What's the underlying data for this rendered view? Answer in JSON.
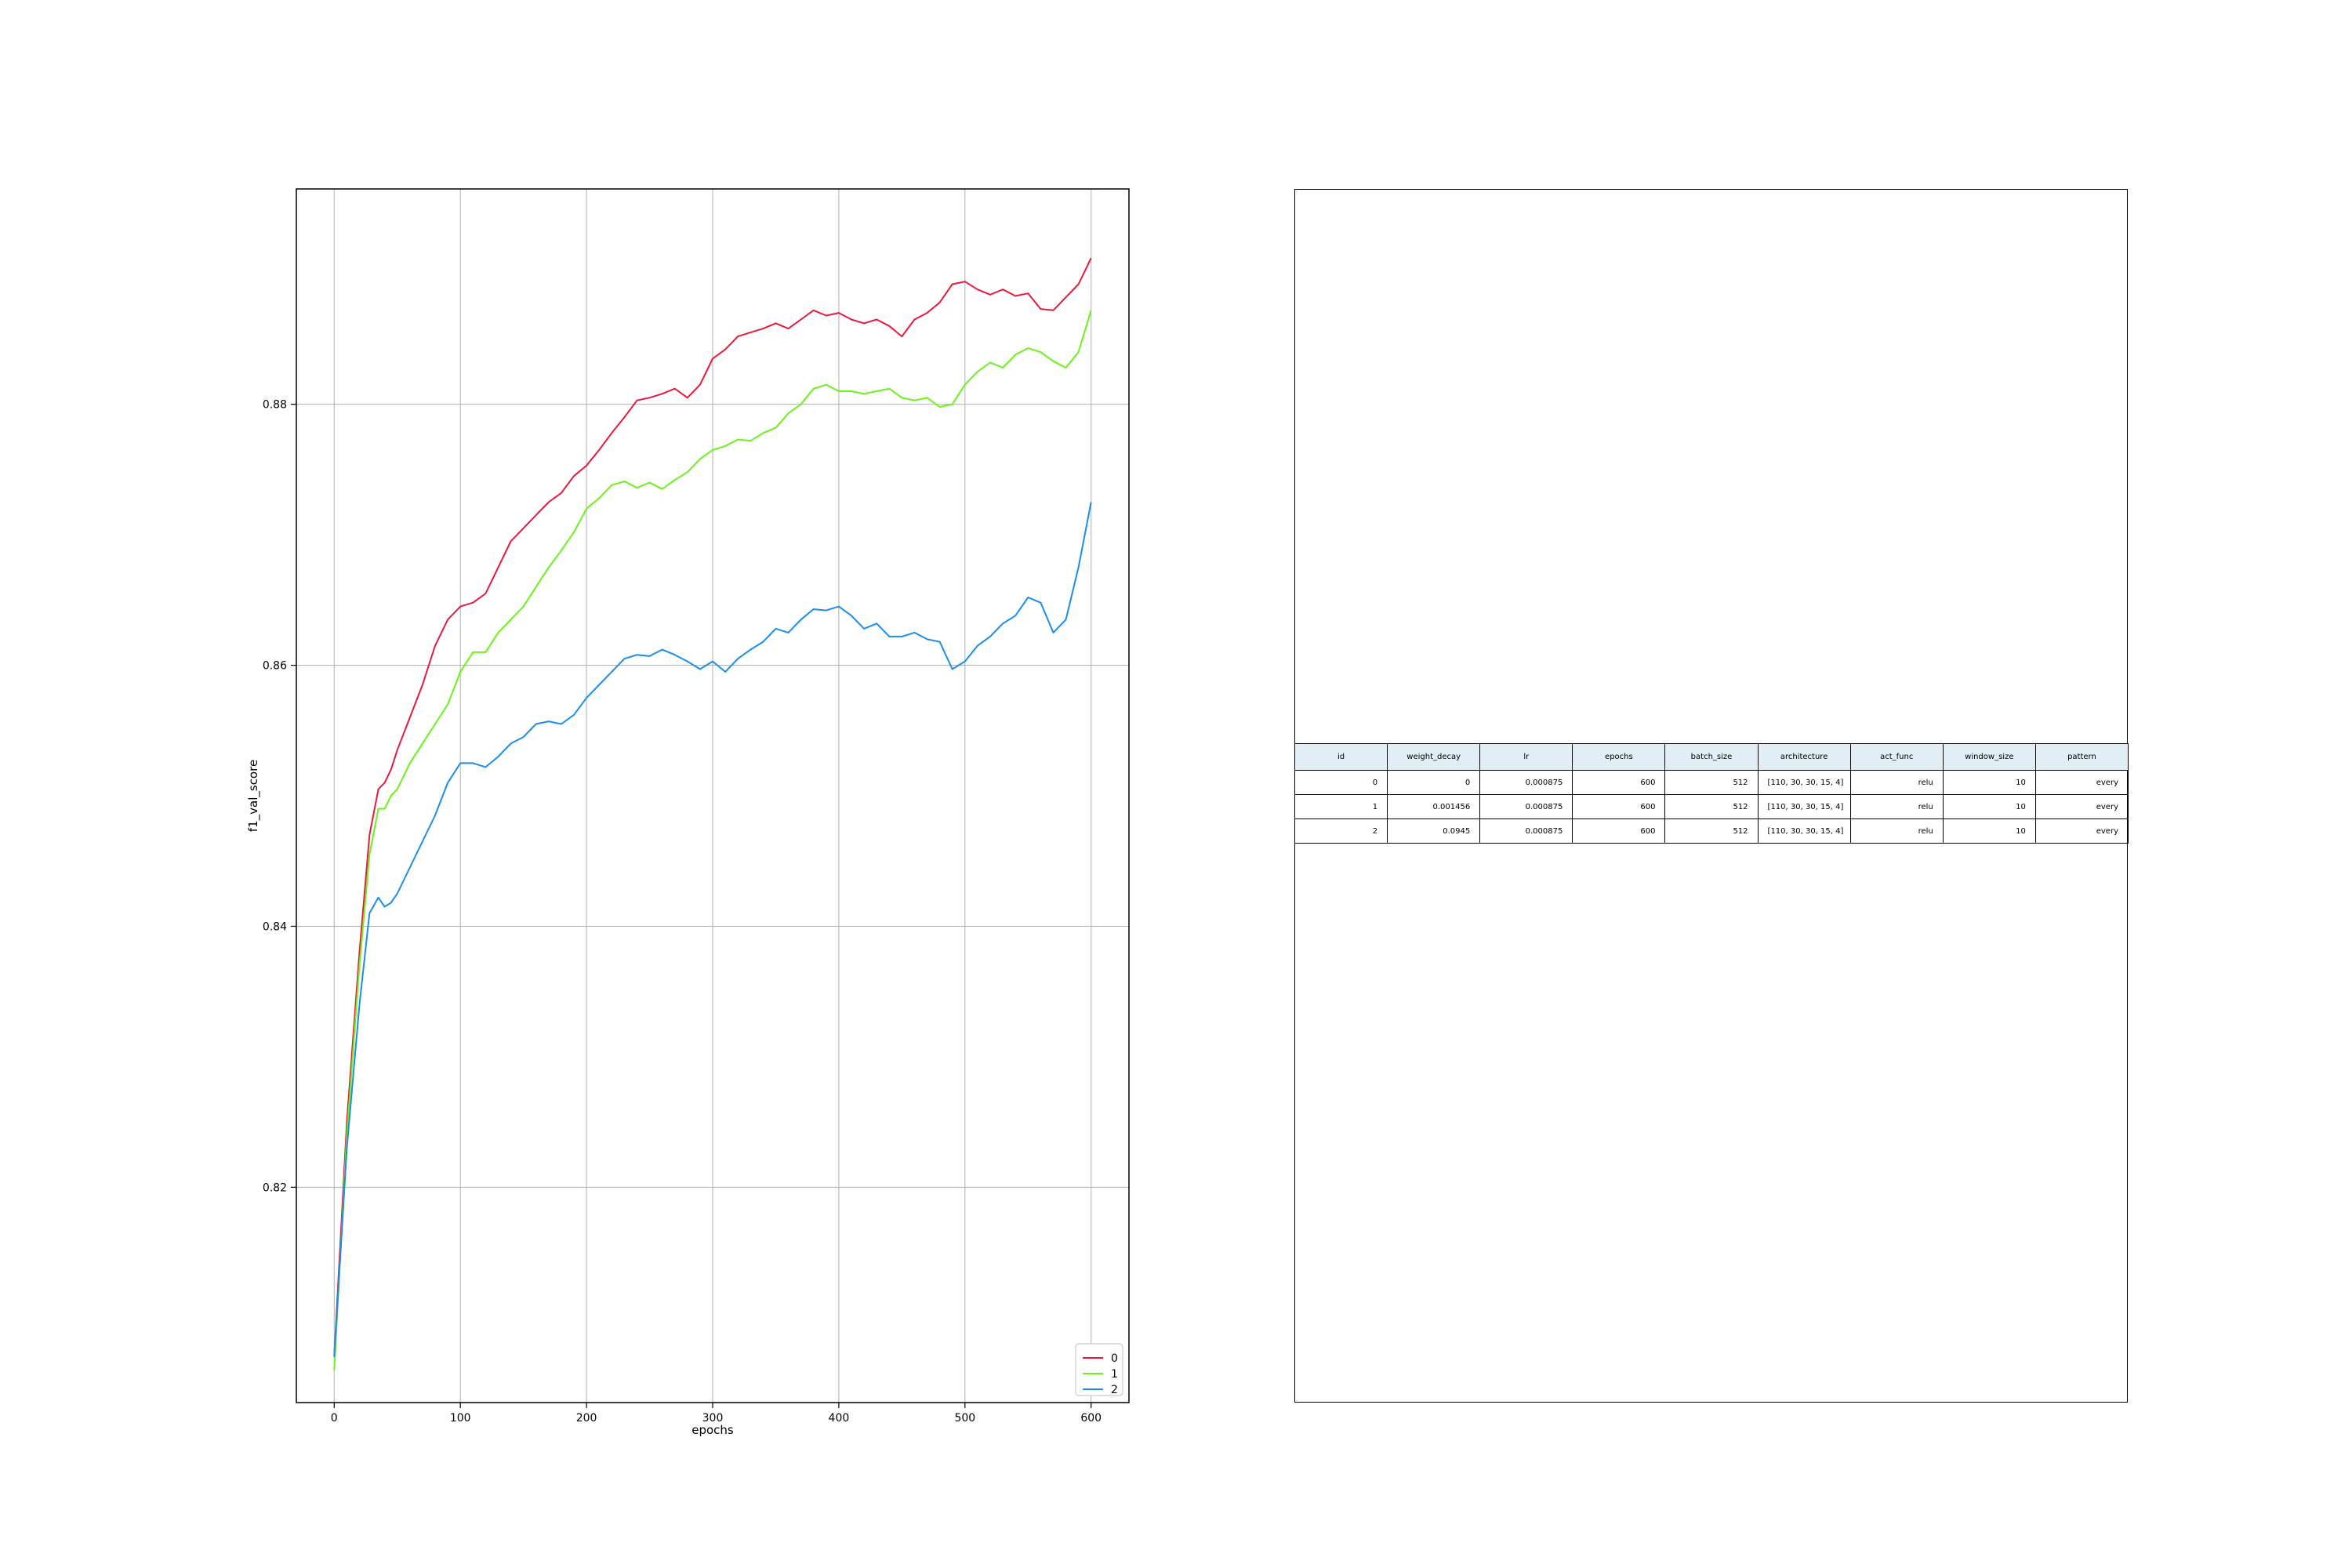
{
  "chart_data": {
    "type": "line",
    "xlabel": "epochs",
    "ylabel": "f1_val_score",
    "xlim": [
      -30,
      630
    ],
    "ylim": [
      0.8035,
      0.8965
    ],
    "xticks": [
      0,
      100,
      200,
      300,
      400,
      500,
      600
    ],
    "yticks": [
      0.82,
      0.84,
      0.86,
      0.88
    ],
    "ytick_labels": [
      "0.82",
      "0.84",
      "0.86",
      "0.88"
    ],
    "grid": true,
    "legend_position": "lower-right",
    "series": [
      {
        "name": "0",
        "color": "#e8193c",
        "x": [
          0,
          10,
          20,
          28,
          35,
          40,
          45,
          50,
          60,
          70,
          80,
          90,
          100,
          110,
          120,
          130,
          140,
          150,
          160,
          170,
          180,
          190,
          200,
          210,
          220,
          230,
          240,
          250,
          260,
          270,
          280,
          290,
          300,
          310,
          320,
          330,
          340,
          350,
          360,
          370,
          380,
          390,
          400,
          410,
          420,
          430,
          440,
          450,
          460,
          470,
          480,
          490,
          500,
          510,
          520,
          530,
          540,
          550,
          560,
          570,
          580,
          590,
          600
        ],
        "y": [
          0.807,
          0.825,
          0.838,
          0.847,
          0.8505,
          0.851,
          0.852,
          0.8535,
          0.856,
          0.8585,
          0.8615,
          0.8635,
          0.8645,
          0.8648,
          0.8655,
          0.8675,
          0.8695,
          0.8705,
          0.8715,
          0.8725,
          0.8732,
          0.8745,
          0.8753,
          0.8765,
          0.8778,
          0.879,
          0.8803,
          0.8805,
          0.8808,
          0.8812,
          0.8805,
          0.8815,
          0.8835,
          0.8842,
          0.8852,
          0.8855,
          0.8858,
          0.8862,
          0.8858,
          0.8865,
          0.8872,
          0.8868,
          0.887,
          0.8865,
          0.8862,
          0.8865,
          0.886,
          0.8852,
          0.8865,
          0.887,
          0.8878,
          0.8892,
          0.8894,
          0.8888,
          0.8884,
          0.8888,
          0.8883,
          0.8885,
          0.8873,
          0.8872,
          0.8882,
          0.8892,
          0.8912
        ]
      },
      {
        "name": "1",
        "color": "#6bf21a",
        "x": [
          0,
          10,
          20,
          28,
          35,
          40,
          45,
          50,
          60,
          70,
          80,
          90,
          100,
          110,
          120,
          130,
          140,
          150,
          160,
          170,
          180,
          190,
          200,
          210,
          220,
          230,
          240,
          250,
          260,
          270,
          280,
          290,
          300,
          310,
          320,
          330,
          340,
          350,
          360,
          370,
          380,
          390,
          400,
          410,
          420,
          430,
          440,
          450,
          460,
          470,
          480,
          490,
          500,
          510,
          520,
          530,
          540,
          550,
          560,
          570,
          580,
          590,
          600
        ],
        "y": [
          0.806,
          0.824,
          0.837,
          0.8455,
          0.849,
          0.849,
          0.85,
          0.8505,
          0.8525,
          0.854,
          0.8555,
          0.857,
          0.8595,
          0.861,
          0.861,
          0.8625,
          0.8635,
          0.8645,
          0.866,
          0.8675,
          0.8688,
          0.8702,
          0.872,
          0.8728,
          0.8738,
          0.8741,
          0.8736,
          0.874,
          0.8735,
          0.8742,
          0.8748,
          0.8758,
          0.8765,
          0.8768,
          0.8773,
          0.8772,
          0.8778,
          0.8782,
          0.8793,
          0.88,
          0.8812,
          0.8815,
          0.881,
          0.881,
          0.8808,
          0.881,
          0.8812,
          0.8805,
          0.8803,
          0.8805,
          0.8798,
          0.88,
          0.8815,
          0.8825,
          0.8832,
          0.8828,
          0.8838,
          0.8843,
          0.884,
          0.8833,
          0.8828,
          0.884,
          0.8872
        ]
      },
      {
        "name": "2",
        "color": "#1a8ee8",
        "x": [
          0,
          10,
          20,
          28,
          35,
          40,
          45,
          50,
          60,
          70,
          80,
          90,
          100,
          110,
          120,
          130,
          140,
          150,
          160,
          170,
          180,
          190,
          200,
          210,
          220,
          230,
          240,
          250,
          260,
          270,
          280,
          290,
          300,
          310,
          320,
          330,
          340,
          350,
          360,
          370,
          380,
          390,
          400,
          410,
          420,
          430,
          440,
          450,
          460,
          470,
          480,
          490,
          500,
          510,
          520,
          530,
          540,
          550,
          560,
          570,
          580,
          590,
          600
        ],
        "y": [
          0.807,
          0.823,
          0.834,
          0.841,
          0.8422,
          0.8415,
          0.8418,
          0.8425,
          0.8445,
          0.8465,
          0.8485,
          0.851,
          0.8525,
          0.8525,
          0.8522,
          0.853,
          0.854,
          0.8545,
          0.8555,
          0.8557,
          0.8555,
          0.8562,
          0.8575,
          0.8585,
          0.8595,
          0.8605,
          0.8608,
          0.8607,
          0.8612,
          0.8608,
          0.8603,
          0.8597,
          0.8603,
          0.8595,
          0.8605,
          0.8612,
          0.8618,
          0.8628,
          0.8625,
          0.8635,
          0.8643,
          0.8642,
          0.8645,
          0.8638,
          0.8628,
          0.8632,
          0.8622,
          0.8622,
          0.8625,
          0.862,
          0.8618,
          0.8597,
          0.8603,
          0.8615,
          0.8622,
          0.8632,
          0.8638,
          0.8652,
          0.8648,
          0.8625,
          0.8635,
          0.8675,
          0.8725
        ]
      }
    ]
  },
  "table": {
    "columns": [
      "id",
      "weight_decay",
      "lr",
      "epochs",
      "batch_size",
      "architecture",
      "act_func",
      "window_size",
      "pattern"
    ],
    "rows": [
      [
        "0",
        "0",
        "0.000875",
        "600",
        "512",
        "[110, 30, 30, 15, 4]",
        "relu",
        "10",
        "every"
      ],
      [
        "1",
        "0.001456",
        "0.000875",
        "600",
        "512",
        "[110, 30, 30, 15, 4]",
        "relu",
        "10",
        "every"
      ],
      [
        "2",
        "0.0945",
        "0.000875",
        "600",
        "512",
        "[110, 30, 30, 15, 4]",
        "relu",
        "10",
        "every"
      ]
    ]
  }
}
